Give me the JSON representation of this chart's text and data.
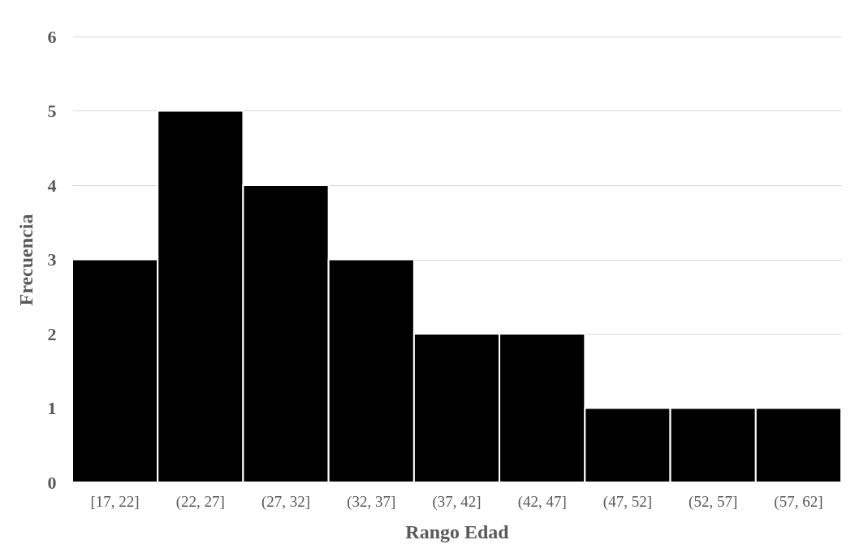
{
  "chart_data": {
    "type": "bar",
    "xlabel": "Rango Edad",
    "ylabel": "Frecuencia",
    "categories": [
      "[17, 22]",
      "(22, 27]",
      "(27, 32]",
      "(32, 37]",
      "(37, 42]",
      "(42, 47]",
      "(47, 52]",
      "(52, 57]",
      "(57, 62]"
    ],
    "values": [
      3,
      5,
      4,
      3,
      2,
      2,
      1,
      1,
      1
    ],
    "color": "#000000",
    "ylim": [
      0,
      6
    ],
    "yticks": [
      0,
      1,
      2,
      3,
      4,
      5,
      6
    ],
    "grid": "y"
  }
}
